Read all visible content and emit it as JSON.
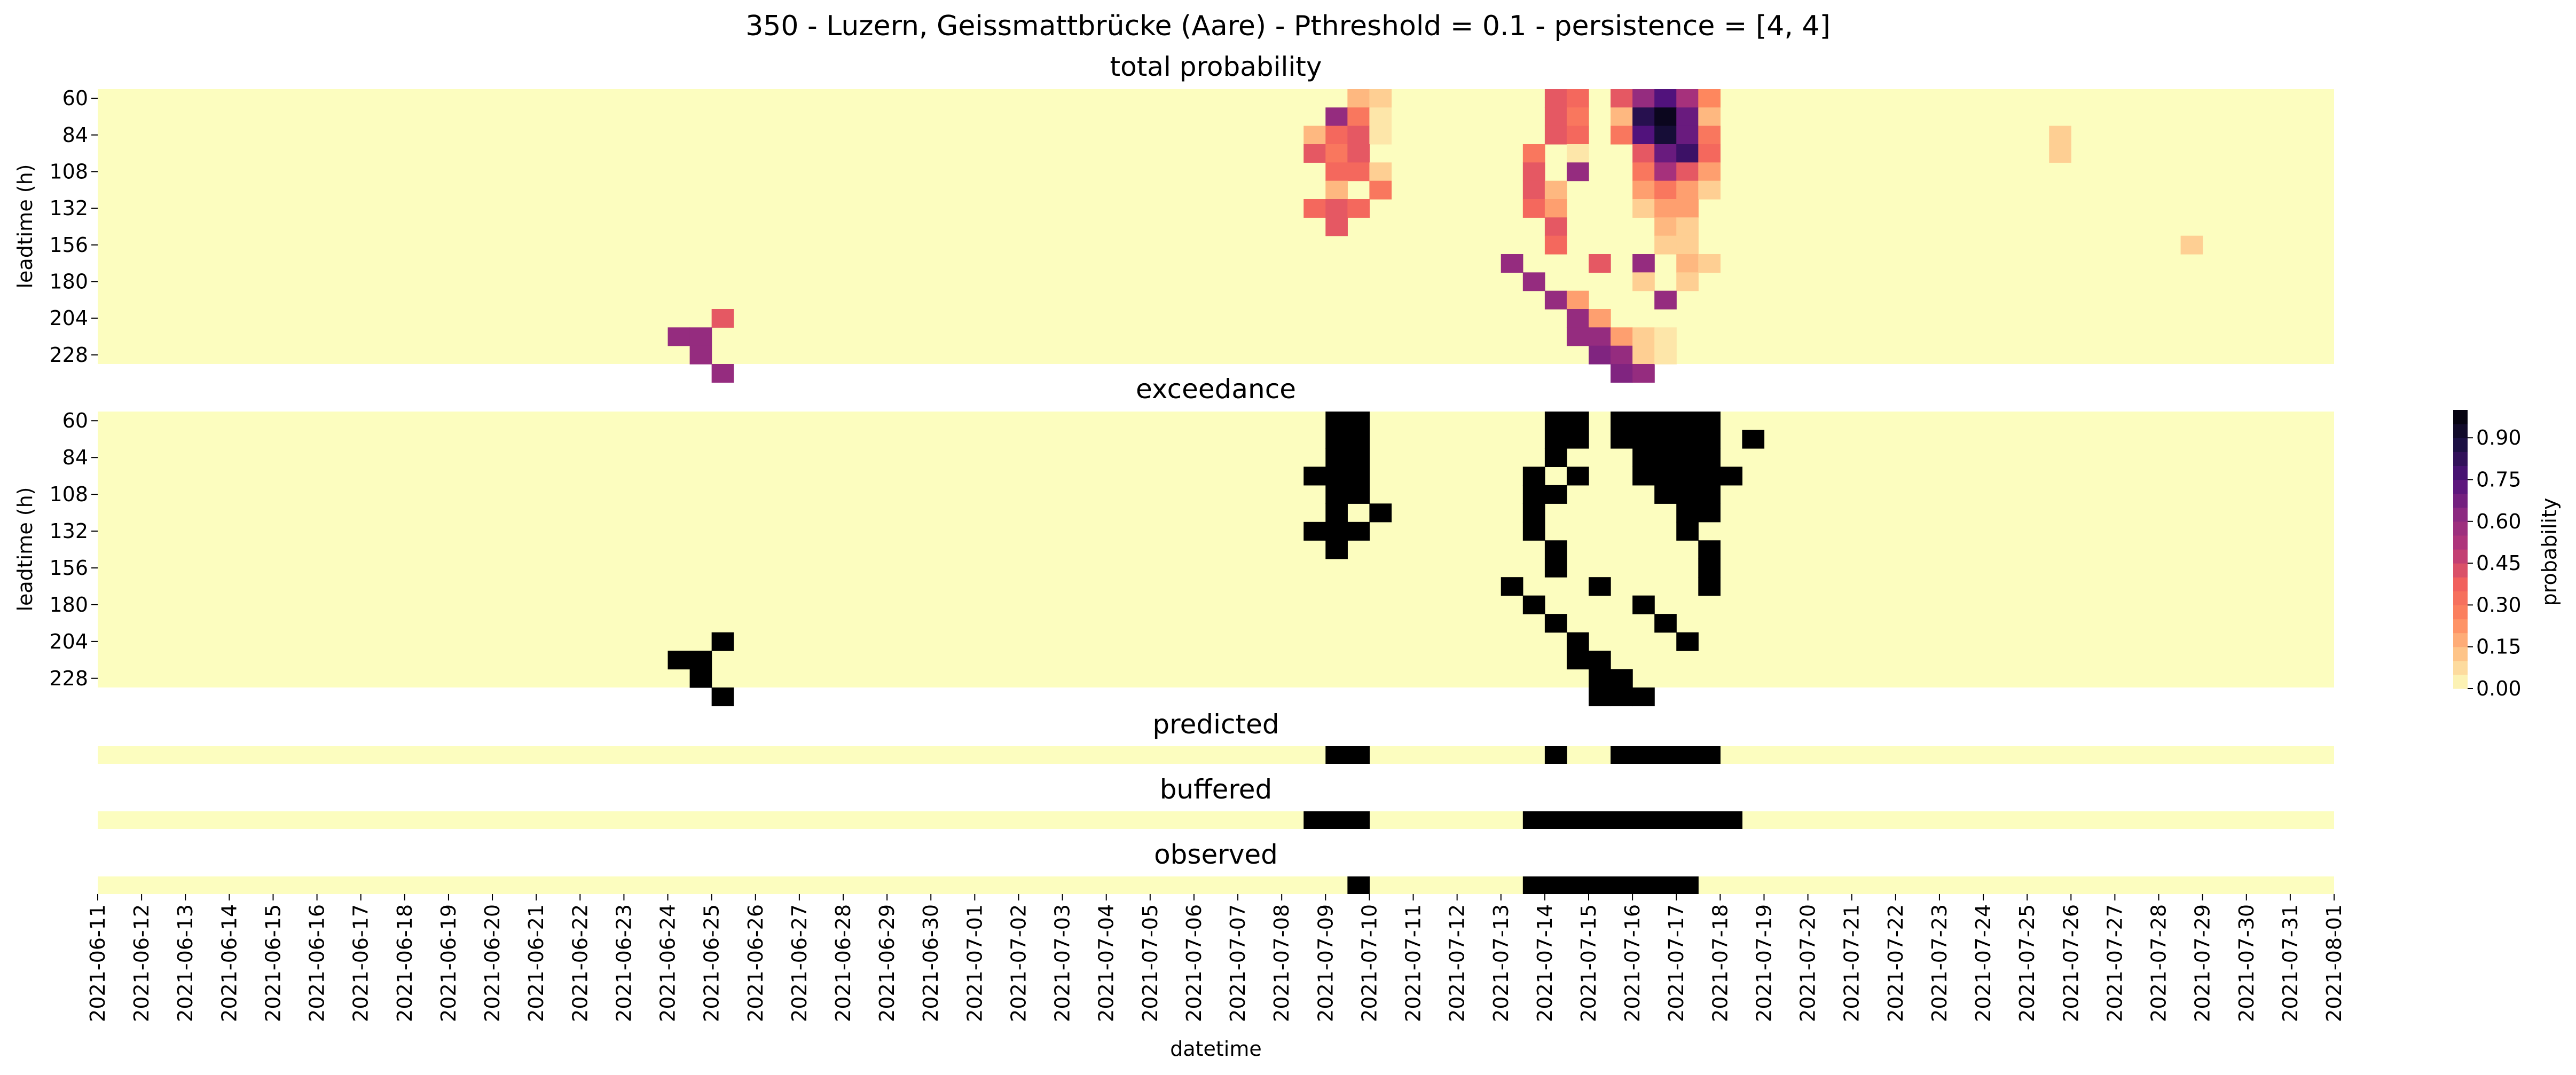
{
  "chart_data": {
    "type": "heatmap",
    "title": "350 - Luzern, Geissmattbrücke (Aare) - Pthreshold = 0.1 - persistence = [4, 4]",
    "xlabel": "datetime",
    "x_ticks": [
      "2021-06-11",
      "2021-06-12",
      "2021-06-13",
      "2021-06-14",
      "2021-06-15",
      "2021-06-16",
      "2021-06-17",
      "2021-06-18",
      "2021-06-19",
      "2021-06-20",
      "2021-06-21",
      "2021-06-22",
      "2021-06-23",
      "2021-06-24",
      "2021-06-25",
      "2021-06-26",
      "2021-06-27",
      "2021-06-28",
      "2021-06-29",
      "2021-06-30",
      "2021-07-01",
      "2021-07-02",
      "2021-07-03",
      "2021-07-04",
      "2021-07-05",
      "2021-07-06",
      "2021-07-07",
      "2021-07-08",
      "2021-07-09",
      "2021-07-10",
      "2021-07-11",
      "2021-07-12",
      "2021-07-13",
      "2021-07-14",
      "2021-07-15",
      "2021-07-16",
      "2021-07-17",
      "2021-07-18",
      "2021-07-19",
      "2021-07-20",
      "2021-07-21",
      "2021-07-22",
      "2021-07-23",
      "2021-07-24",
      "2021-07-25",
      "2021-07-26",
      "2021-07-27",
      "2021-07-28",
      "2021-07-29",
      "2021-07-30",
      "2021-07-31",
      "2021-08-01"
    ],
    "time_step_hours": 12,
    "colorbar": {
      "label": "probability",
      "ticks": [
        "0.00",
        "0.15",
        "0.30",
        "0.45",
        "0.60",
        "0.75",
        "0.90"
      ],
      "range": [
        0,
        1
      ],
      "levels": 20,
      "colormap": "magma_r"
    },
    "panels": [
      {
        "title": "total probability",
        "ylabel": "leadtime (h)",
        "yticks": [
          "60",
          "84",
          "108",
          "132",
          "156",
          "180",
          "204",
          "228"
        ],
        "leadtime_range_h": [
          60,
          240
        ],
        "leadtime_step_h": 12,
        "cells": [
          [
            12,
            "2021-06-25 00:00",
            0.4
          ],
          [
            13,
            "2021-06-24 00:00",
            0.6
          ],
          [
            13,
            "2021-06-24 12:00",
            0.6
          ],
          [
            14,
            "2021-06-24 12:00",
            0.6
          ],
          [
            15,
            "2021-06-25 00:00",
            0.6
          ],
          [
            0,
            "2021-07-09 12:00",
            0.15
          ],
          [
            0,
            "2021-07-10 00:00",
            0.1
          ],
          [
            1,
            "2021-07-09 00:00",
            0.6
          ],
          [
            1,
            "2021-07-09 12:00",
            0.3
          ],
          [
            1,
            "2021-07-10 00:00",
            0.05
          ],
          [
            2,
            "2021-07-08 12:00",
            0.15
          ],
          [
            2,
            "2021-07-09 00:00",
            0.35
          ],
          [
            2,
            "2021-07-09 12:00",
            0.4
          ],
          [
            2,
            "2021-07-10 00:00",
            0.05
          ],
          [
            3,
            "2021-07-08 12:00",
            0.4
          ],
          [
            3,
            "2021-07-09 00:00",
            0.3
          ],
          [
            3,
            "2021-07-09 12:00",
            0.4
          ],
          [
            4,
            "2021-07-09 00:00",
            0.35
          ],
          [
            4,
            "2021-07-09 12:00",
            0.35
          ],
          [
            4,
            "2021-07-10 00:00",
            0.1
          ],
          [
            5,
            "2021-07-09 00:00",
            0.15
          ],
          [
            5,
            "2021-07-10 00:00",
            0.3
          ],
          [
            6,
            "2021-07-08 12:00",
            0.35
          ],
          [
            6,
            "2021-07-09 00:00",
            0.4
          ],
          [
            6,
            "2021-07-09 12:00",
            0.35
          ],
          [
            7,
            "2021-07-09 00:00",
            0.4
          ],
          [
            0,
            "2021-07-14 00:00",
            0.4
          ],
          [
            0,
            "2021-07-14 12:00",
            0.35
          ],
          [
            1,
            "2021-07-14 00:00",
            0.4
          ],
          [
            1,
            "2021-07-14 12:00",
            0.3
          ],
          [
            2,
            "2021-07-14 00:00",
            0.4
          ],
          [
            2,
            "2021-07-14 12:00",
            0.35
          ],
          [
            3,
            "2021-07-13 12:00",
            0.3
          ],
          [
            3,
            "2021-07-14 12:00",
            0.05
          ],
          [
            4,
            "2021-07-13 12:00",
            0.4
          ],
          [
            4,
            "2021-07-14 12:00",
            0.6
          ],
          [
            5,
            "2021-07-13 12:00",
            0.4
          ],
          [
            5,
            "2021-07-14 00:00",
            0.15
          ],
          [
            6,
            "2021-07-13 12:00",
            0.35
          ],
          [
            6,
            "2021-07-14 00:00",
            0.2
          ],
          [
            7,
            "2021-07-14 00:00",
            0.4
          ],
          [
            8,
            "2021-07-14 00:00",
            0.35
          ],
          [
            9,
            "2021-07-13 00:00",
            0.6
          ],
          [
            10,
            "2021-07-13 12:00",
            0.6
          ],
          [
            11,
            "2021-07-14 00:00",
            0.6
          ],
          [
            11,
            "2021-07-14 12:00",
            0.2
          ],
          [
            12,
            "2021-07-14 12:00",
            0.6
          ],
          [
            12,
            "2021-07-15 00:00",
            0.2
          ],
          [
            13,
            "2021-07-14 12:00",
            0.6
          ],
          [
            13,
            "2021-07-15 00:00",
            0.6
          ],
          [
            13,
            "2021-07-15 12:00",
            0.2
          ],
          [
            14,
            "2021-07-15 00:00",
            0.65
          ],
          [
            14,
            "2021-07-15 12:00",
            0.6
          ],
          [
            14,
            "2021-07-16 00:00",
            0.1
          ],
          [
            15,
            "2021-07-15 12:00",
            0.65
          ],
          [
            15,
            "2021-07-16 00:00",
            0.6
          ],
          [
            0,
            "2021-07-15 12:00",
            0.4
          ],
          [
            0,
            "2021-07-16 00:00",
            0.6
          ],
          [
            0,
            "2021-07-16 12:00",
            0.75
          ],
          [
            0,
            "2021-07-17 00:00",
            0.55
          ],
          [
            0,
            "2021-07-17 12:00",
            0.25
          ],
          [
            1,
            "2021-07-15 12:00",
            0.15
          ],
          [
            1,
            "2021-07-16 00:00",
            0.85
          ],
          [
            1,
            "2021-07-16 12:00",
            0.95
          ],
          [
            1,
            "2021-07-17 00:00",
            0.7
          ],
          [
            1,
            "2021-07-17 12:00",
            0.15
          ],
          [
            2,
            "2021-07-15 12:00",
            0.3
          ],
          [
            2,
            "2021-07-16 00:00",
            0.75
          ],
          [
            2,
            "2021-07-16 12:00",
            0.9
          ],
          [
            2,
            "2021-07-17 00:00",
            0.7
          ],
          [
            2,
            "2021-07-17 12:00",
            0.3
          ],
          [
            3,
            "2021-07-16 00:00",
            0.4
          ],
          [
            3,
            "2021-07-16 12:00",
            0.7
          ],
          [
            3,
            "2021-07-17 00:00",
            0.8
          ],
          [
            3,
            "2021-07-17 12:00",
            0.35
          ],
          [
            4,
            "2021-07-16 00:00",
            0.3
          ],
          [
            4,
            "2021-07-16 12:00",
            0.55
          ],
          [
            4,
            "2021-07-17 00:00",
            0.4
          ],
          [
            4,
            "2021-07-17 12:00",
            0.2
          ],
          [
            5,
            "2021-07-16 00:00",
            0.2
          ],
          [
            5,
            "2021-07-16 12:00",
            0.3
          ],
          [
            5,
            "2021-07-17 00:00",
            0.2
          ],
          [
            5,
            "2021-07-17 12:00",
            0.1
          ],
          [
            6,
            "2021-07-16 00:00",
            0.1
          ],
          [
            6,
            "2021-07-16 12:00",
            0.2
          ],
          [
            6,
            "2021-07-17 00:00",
            0.2
          ],
          [
            7,
            "2021-07-16 12:00",
            0.15
          ],
          [
            7,
            "2021-07-17 00:00",
            0.1
          ],
          [
            8,
            "2021-07-16 12:00",
            0.1
          ],
          [
            8,
            "2021-07-17 00:00",
            0.1
          ],
          [
            9,
            "2021-07-15 00:00",
            0.4
          ],
          [
            9,
            "2021-07-16 00:00",
            0.6
          ],
          [
            9,
            "2021-07-17 00:00",
            0.15
          ],
          [
            9,
            "2021-07-17 12:00",
            0.1
          ],
          [
            10,
            "2021-07-16 00:00",
            0.1
          ],
          [
            10,
            "2021-07-17 00:00",
            0.1
          ],
          [
            11,
            "2021-07-16 12:00",
            0.6
          ],
          [
            13,
            "2021-07-16 00:00",
            0.1
          ],
          [
            13,
            "2021-07-16 12:00",
            0.05
          ],
          [
            14,
            "2021-07-16 12:00",
            0.05
          ],
          [
            2,
            "2021-07-25 12:00",
            0.1
          ],
          [
            3,
            "2021-07-25 12:00",
            0.1
          ],
          [
            8,
            "2021-07-28 12:00",
            0.1
          ]
        ]
      },
      {
        "title": "exceedance",
        "ylabel": "leadtime (h)",
        "yticks": [
          "60",
          "84",
          "108",
          "132",
          "156",
          "180",
          "204",
          "228"
        ],
        "leadtime_range_h": [
          60,
          240
        ],
        "leadtime_step_h": 12,
        "binary": true,
        "cells": [
          [
            12,
            "2021-06-25 00:00",
            1
          ],
          [
            13,
            "2021-06-24 00:00",
            1
          ],
          [
            13,
            "2021-06-24 12:00",
            1
          ],
          [
            14,
            "2021-06-24 12:00",
            1
          ],
          [
            15,
            "2021-06-25 00:00",
            1
          ],
          [
            0,
            "2021-07-09 00:00",
            1
          ],
          [
            0,
            "2021-07-09 12:00",
            1
          ],
          [
            1,
            "2021-07-09 00:00",
            1
          ],
          [
            1,
            "2021-07-09 12:00",
            1
          ],
          [
            2,
            "2021-07-09 00:00",
            1
          ],
          [
            2,
            "2021-07-09 12:00",
            1
          ],
          [
            3,
            "2021-07-08 12:00",
            1
          ],
          [
            3,
            "2021-07-09 00:00",
            1
          ],
          [
            3,
            "2021-07-09 12:00",
            1
          ],
          [
            4,
            "2021-07-09 00:00",
            1
          ],
          [
            4,
            "2021-07-09 12:00",
            1
          ],
          [
            5,
            "2021-07-09 00:00",
            1
          ],
          [
            5,
            "2021-07-10 00:00",
            1
          ],
          [
            6,
            "2021-07-08 12:00",
            1
          ],
          [
            6,
            "2021-07-09 00:00",
            1
          ],
          [
            6,
            "2021-07-09 12:00",
            1
          ],
          [
            7,
            "2021-07-09 00:00",
            1
          ],
          [
            0,
            "2021-07-14 00:00",
            1
          ],
          [
            0,
            "2021-07-14 12:00",
            1
          ],
          [
            1,
            "2021-07-14 00:00",
            1
          ],
          [
            1,
            "2021-07-14 12:00",
            1
          ],
          [
            2,
            "2021-07-14 00:00",
            1
          ],
          [
            3,
            "2021-07-13 12:00",
            1
          ],
          [
            3,
            "2021-07-14 12:00",
            1
          ],
          [
            4,
            "2021-07-13 12:00",
            1
          ],
          [
            4,
            "2021-07-14 00:00",
            1
          ],
          [
            5,
            "2021-07-13 12:00",
            1
          ],
          [
            6,
            "2021-07-13 12:00",
            1
          ],
          [
            7,
            "2021-07-14 00:00",
            1
          ],
          [
            8,
            "2021-07-14 00:00",
            1
          ],
          [
            9,
            "2021-07-13 00:00",
            1
          ],
          [
            10,
            "2021-07-13 12:00",
            1
          ],
          [
            11,
            "2021-07-14 00:00",
            1
          ],
          [
            12,
            "2021-07-14 12:00",
            1
          ],
          [
            13,
            "2021-07-14 12:00",
            1
          ],
          [
            13,
            "2021-07-15 00:00",
            1
          ],
          [
            14,
            "2021-07-15 00:00",
            1
          ],
          [
            14,
            "2021-07-15 12:00",
            1
          ],
          [
            15,
            "2021-07-15 00:00",
            1
          ],
          [
            15,
            "2021-07-15 12:00",
            1
          ],
          [
            15,
            "2021-07-16 00:00",
            1
          ],
          [
            0,
            "2021-07-15 12:00",
            1
          ],
          [
            0,
            "2021-07-16 00:00",
            1
          ],
          [
            0,
            "2021-07-16 12:00",
            1
          ],
          [
            0,
            "2021-07-17 00:00",
            1
          ],
          [
            0,
            "2021-07-17 12:00",
            1
          ],
          [
            1,
            "2021-07-15 12:00",
            1
          ],
          [
            1,
            "2021-07-16 00:00",
            1
          ],
          [
            1,
            "2021-07-16 12:00",
            1
          ],
          [
            1,
            "2021-07-17 00:00",
            1
          ],
          [
            1,
            "2021-07-17 12:00",
            1
          ],
          [
            1,
            "2021-07-18 12:00",
            1
          ],
          [
            2,
            "2021-07-16 00:00",
            1
          ],
          [
            2,
            "2021-07-16 12:00",
            1
          ],
          [
            2,
            "2021-07-17 00:00",
            1
          ],
          [
            2,
            "2021-07-17 12:00",
            1
          ],
          [
            3,
            "2021-07-16 00:00",
            1
          ],
          [
            3,
            "2021-07-16 12:00",
            1
          ],
          [
            3,
            "2021-07-17 00:00",
            1
          ],
          [
            3,
            "2021-07-17 12:00",
            1
          ],
          [
            3,
            "2021-07-18 00:00",
            1
          ],
          [
            4,
            "2021-07-16 12:00",
            1
          ],
          [
            4,
            "2021-07-17 00:00",
            1
          ],
          [
            4,
            "2021-07-17 12:00",
            1
          ],
          [
            5,
            "2021-07-17 00:00",
            1
          ],
          [
            5,
            "2021-07-17 12:00",
            1
          ],
          [
            6,
            "2021-07-17 00:00",
            1
          ],
          [
            7,
            "2021-07-17 12:00",
            1
          ],
          [
            8,
            "2021-07-17 12:00",
            1
          ],
          [
            9,
            "2021-07-15 00:00",
            1
          ],
          [
            9,
            "2021-07-17 12:00",
            1
          ],
          [
            10,
            "2021-07-16 00:00",
            1
          ],
          [
            11,
            "2021-07-16 12:00",
            1
          ],
          [
            12,
            "2021-07-17 00:00",
            1
          ]
        ]
      },
      {
        "title": "predicted",
        "binary": true,
        "intervals": [
          [
            "2021-07-09 00:00",
            "2021-07-09 12:00"
          ],
          [
            "2021-07-14 00:00",
            "2021-07-14 00:00"
          ],
          [
            "2021-07-15 12:00",
            "2021-07-17 12:00"
          ]
        ]
      },
      {
        "title": "buffered",
        "binary": true,
        "intervals": [
          [
            "2021-07-08 12:00",
            "2021-07-09 12:00"
          ],
          [
            "2021-07-13 12:00",
            "2021-07-14 12:00"
          ],
          [
            "2021-07-15 00:00",
            "2021-07-18 00:00"
          ]
        ]
      },
      {
        "title": "observed",
        "binary": true,
        "intervals": [
          [
            "2021-07-09 12:00",
            "2021-07-09 12:00"
          ],
          [
            "2021-07-13 12:00",
            "2021-07-14 12:00"
          ],
          [
            "2021-07-15 00:00",
            "2021-07-17 00:00"
          ]
        ]
      }
    ]
  }
}
